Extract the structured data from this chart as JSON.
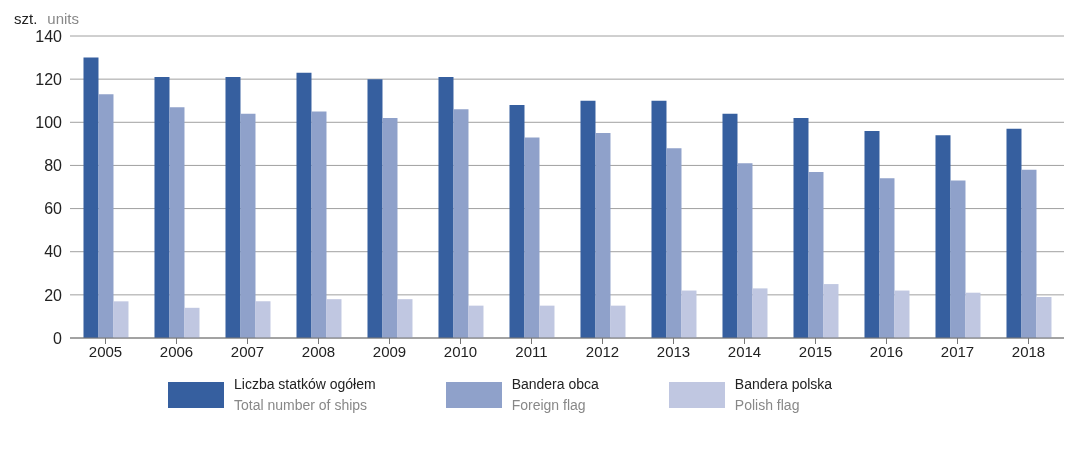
{
  "chart_data": {
    "type": "bar",
    "ylabel": "szt.",
    "annotations": [
      "units"
    ],
    "categories": [
      "2005",
      "2006",
      "2007",
      "2008",
      "2009",
      "2010",
      "2011",
      "2012",
      "2013",
      "2014",
      "2015",
      "2016",
      "2017",
      "2018"
    ],
    "series": [
      {
        "name": "Liczba statków ogółem\nTotal number of ships",
        "color": "#365f9f",
        "values": [
          130,
          121,
          121,
          123,
          120,
          121,
          108,
          110,
          110,
          104,
          102,
          96,
          94,
          97
        ]
      },
      {
        "name": "Bandera obca\nForeign flag",
        "color": "#8fa1ca",
        "values": [
          113,
          107,
          104,
          105,
          102,
          106,
          93,
          95,
          88,
          81,
          77,
          74,
          73,
          78
        ]
      },
      {
        "name": "Bandera polska\nPolish flag",
        "color": "#c0c7e1",
        "values": [
          17,
          14,
          17,
          18,
          18,
          15,
          15,
          15,
          22,
          23,
          25,
          22,
          21,
          19
        ]
      }
    ],
    "ylim": [
      0,
      140
    ],
    "yticks": [
      0,
      20,
      40,
      60,
      80,
      100,
      120,
      140
    ],
    "grid": "y",
    "legend": "bottom"
  }
}
